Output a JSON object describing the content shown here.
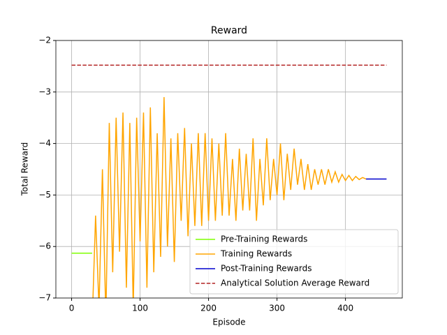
{
  "chart_data": {
    "type": "line",
    "title": "Reward",
    "x_label": "Episode",
    "y_label": "Total Reward",
    "xlim": [
      -23,
      483
    ],
    "ylim": [
      -7,
      -2
    ],
    "xticks": [
      0,
      100,
      200,
      300,
      400
    ],
    "yticks": [
      {
        "value": -2,
        "label": "−2"
      },
      {
        "value": -3,
        "label": "−3"
      },
      {
        "value": -4,
        "label": "−4"
      },
      {
        "value": -5,
        "label": "−5"
      },
      {
        "value": -6,
        "label": "−6"
      },
      {
        "value": -7,
        "label": "−7"
      }
    ],
    "grid": true,
    "legend": "lower right",
    "series": [
      {
        "name": "Pre-Training Rewards",
        "color": "#7fff00",
        "linestyle": "solid",
        "x": [
          0,
          30
        ],
        "values": [
          -6.13,
          -6.13
        ]
      },
      {
        "name": "Training Rewards",
        "color": "#ffa500",
        "linestyle": "solid",
        "x": [
          30,
          35,
          40,
          45,
          50,
          55,
          60,
          65,
          70,
          75,
          80,
          85,
          90,
          95,
          100,
          105,
          110,
          115,
          120,
          125,
          130,
          135,
          140,
          145,
          150,
          155,
          160,
          165,
          170,
          175,
          180,
          185,
          190,
          195,
          200,
          205,
          210,
          215,
          220,
          225,
          230,
          235,
          240,
          245,
          250,
          255,
          260,
          265,
          270,
          275,
          280,
          285,
          290,
          295,
          300,
          305,
          310,
          315,
          320,
          325,
          330,
          335,
          340,
          345,
          350,
          355,
          360,
          365,
          370,
          375,
          380,
          385,
          390,
          395,
          400,
          405,
          410,
          415,
          420,
          425,
          430
        ],
        "values": [
          -7.5,
          -5.4,
          -7.2,
          -4.5,
          -7.4,
          -3.6,
          -6.5,
          -3.5,
          -6.1,
          -3.4,
          -6.8,
          -3.6,
          -7.2,
          -3.5,
          -5.9,
          -3.4,
          -6.8,
          -3.3,
          -6.5,
          -3.8,
          -6.2,
          -3.1,
          -6.0,
          -3.9,
          -6.3,
          -3.8,
          -5.5,
          -3.7,
          -5.8,
          -4.0,
          -5.6,
          -3.8,
          -5.6,
          -3.8,
          -5.5,
          -3.9,
          -5.5,
          -4.0,
          -5.4,
          -3.8,
          -5.4,
          -4.3,
          -5.5,
          -4.1,
          -5.3,
          -4.2,
          -5.3,
          -3.9,
          -5.5,
          -4.3,
          -5.2,
          -3.9,
          -5.1,
          -4.3,
          -5.0,
          -4.0,
          -5.1,
          -4.2,
          -4.9,
          -4.1,
          -4.8,
          -4.3,
          -4.9,
          -4.4,
          -4.9,
          -4.5,
          -4.8,
          -4.5,
          -4.8,
          -4.5,
          -4.75,
          -4.55,
          -4.75,
          -4.6,
          -4.72,
          -4.62,
          -4.72,
          -4.64,
          -4.7,
          -4.66,
          -4.69
        ]
      },
      {
        "name": "Post-Training Rewards",
        "color": "#0000cd",
        "linestyle": "solid",
        "x": [
          430,
          460
        ],
        "values": [
          -4.69,
          -4.69
        ]
      },
      {
        "name": "Analytical Solution Average Reward",
        "color": "#b22222",
        "linestyle": "dashed",
        "x": [
          0,
          460
        ],
        "values": [
          -2.48,
          -2.48
        ]
      }
    ]
  }
}
